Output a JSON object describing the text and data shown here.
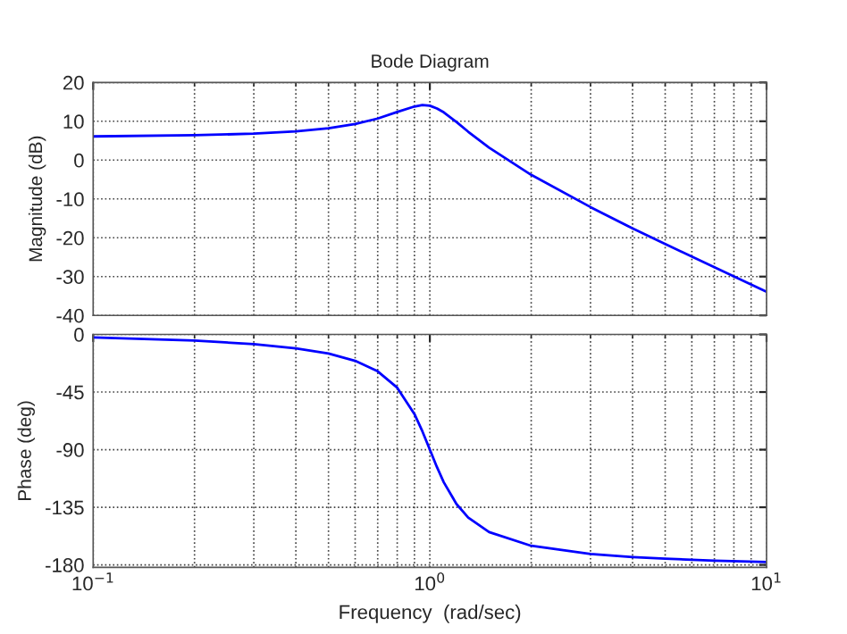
{
  "chart_data": [
    {
      "type": "line",
      "title": "Bode Diagram",
      "ylabel": "Magnitude (dB)",
      "log": "x",
      "grid": true,
      "tick_labels": "y",
      "x": [
        0.1,
        0.2,
        0.3,
        0.4,
        0.5,
        0.6,
        0.7,
        0.8,
        0.9,
        0.95,
        1.0,
        1.05,
        1.1,
        1.2,
        1.3,
        1.5,
        2,
        3,
        4,
        5,
        7,
        10
      ],
      "series": [
        {
          "color": "#0000ff",
          "values": [
            6.1,
            6.4,
            6.8,
            7.4,
            8.2,
            9.3,
            10.7,
            12.4,
            13.8,
            14.2,
            14.0,
            13.3,
            12.3,
            9.8,
            7.3,
            3.2,
            -3.8,
            -12.1,
            -17.6,
            -21.6,
            -27.6,
            -33.9
          ]
        }
      ],
      "xlim": [
        0.1,
        10
      ],
      "xticks": [
        0.1,
        1,
        10
      ],
      "ylim": [
        -40,
        20
      ],
      "yticks": [
        -40,
        -30,
        -20,
        -10,
        0,
        10,
        20
      ]
    },
    {
      "type": "line",
      "xlabel": "Frequency  (rad/sec)",
      "ylabel": "Phase (deg)",
      "log": "x",
      "grid": true,
      "x": [
        0.1,
        0.2,
        0.3,
        0.4,
        0.5,
        0.6,
        0.7,
        0.8,
        0.9,
        0.95,
        1.0,
        1.05,
        1.1,
        1.2,
        1.3,
        1.5,
        2,
        3,
        4,
        5,
        7,
        10
      ],
      "series": [
        {
          "color": "#0000ff",
          "values": [
            -2.3,
            -4.8,
            -7.5,
            -10.8,
            -14.9,
            -20.6,
            -28.8,
            -41.6,
            -62.2,
            -75.6,
            -90,
            -103.7,
            -115.5,
            -132.5,
            -143,
            -154.4,
            -165.1,
            -171.5,
            -173.9,
            -175.2,
            -176.7,
            -177.7
          ]
        }
      ],
      "xlim": [
        0.1,
        10
      ],
      "xticks": [
        {
          "value": 0.1,
          "label": "10$^{−1}$"
        },
        {
          "value": 1,
          "label": "10$^{0}$"
        },
        {
          "value": 10,
          "label": "10$^{1}$"
        }
      ],
      "ylim": [
        -182,
        0
      ],
      "yticks": [
        -180,
        -135,
        -90,
        -45,
        0
      ]
    }
  ]
}
